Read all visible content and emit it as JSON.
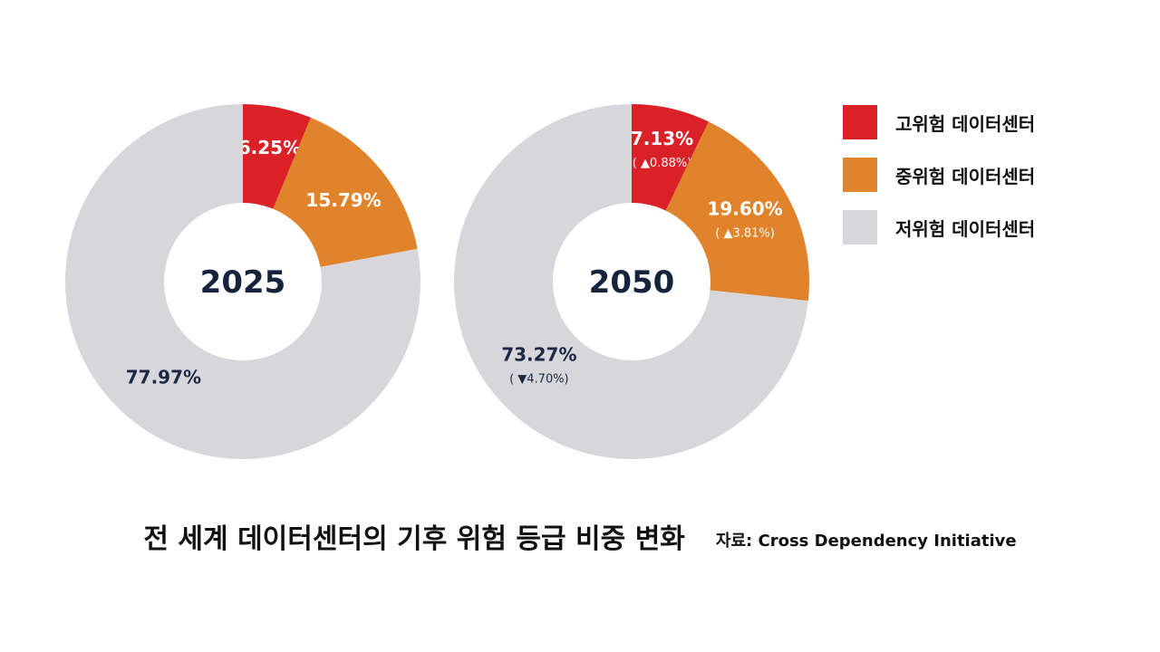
{
  "colors": {
    "high": "#DA2128",
    "medium": "#E0832B",
    "low": "#D7D7DB",
    "label_light": "#ffffff",
    "label_dark": "#1b2743",
    "center_text": "#16233d"
  },
  "legend": {
    "items": [
      {
        "label": "고위험 데이터센터",
        "color_key": "high"
      },
      {
        "label": "중위험 데이터센터",
        "color_key": "medium"
      },
      {
        "label": "저위험 데이터센터",
        "color_key": "low"
      }
    ]
  },
  "footer": {
    "title": "전 세계 데이터센터의 기후 위험 등급 비중 변화",
    "source": "자료: Cross Dependency Initiative"
  },
  "chart_data": [
    {
      "type": "pie",
      "center_label": "2025",
      "slices": [
        {
          "category": "고위험 데이터센터",
          "value": 6.25,
          "label": "6.25%",
          "change": ""
        },
        {
          "category": "중위험 데이터센터",
          "value": 15.79,
          "label": "15.79%",
          "change": ""
        },
        {
          "category": "저위험 데이터센터",
          "value": 77.97,
          "label": "77.97%",
          "change": ""
        }
      ]
    },
    {
      "type": "pie",
      "center_label": "2050",
      "slices": [
        {
          "category": "고위험 데이터센터",
          "value": 7.13,
          "label": "7.13%",
          "change": "( ▲0.88%)"
        },
        {
          "category": "중위험 데이터센터",
          "value": 19.6,
          "label": "19.60%",
          "change": "( ▲3.81%)"
        },
        {
          "category": "저위험 데이터센터",
          "value": 73.27,
          "label": "73.27%",
          "change": "( ▼4.70%)"
        }
      ]
    }
  ]
}
